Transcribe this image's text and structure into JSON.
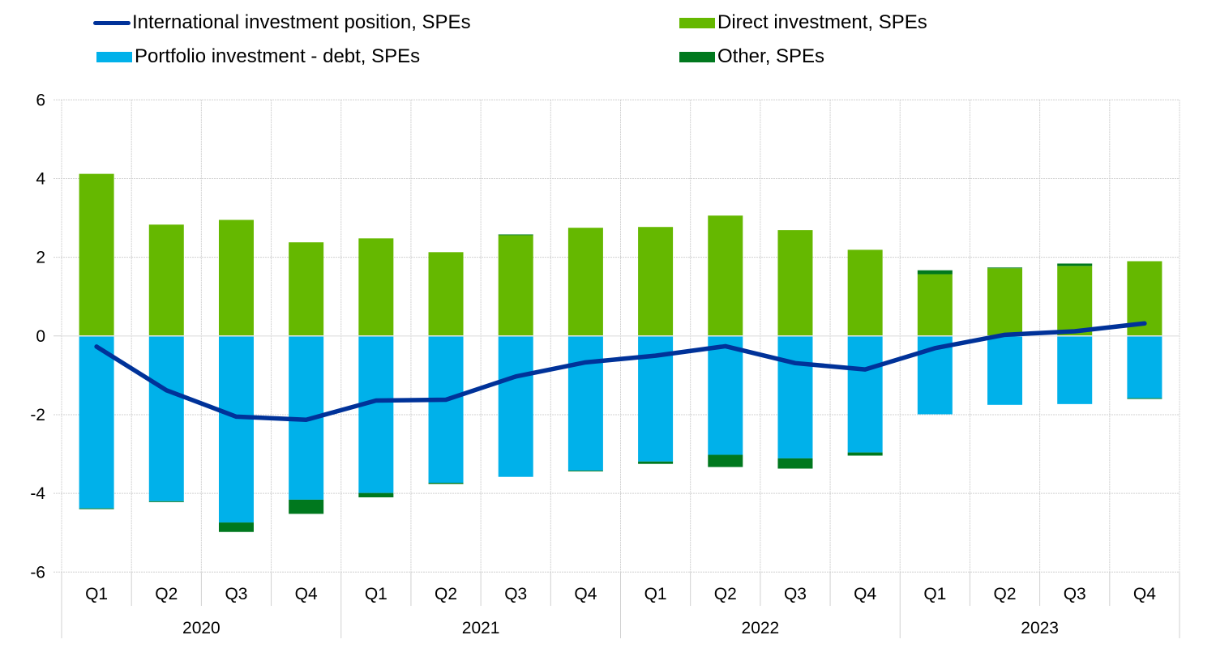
{
  "chart_data": {
    "type": "bar",
    "stacked": true,
    "title": "",
    "xlabel": "",
    "ylabel": "",
    "ylim": [
      -6,
      6
    ],
    "yticks": [
      6,
      4,
      2,
      0,
      -2,
      -4,
      -6
    ],
    "ytick_labels": [
      "6",
      "4",
      "2",
      "0",
      "-2",
      "-4",
      "-6"
    ],
    "grid": true,
    "legend_position": "top",
    "categories": [
      "Q1",
      "Q2",
      "Q3",
      "Q4",
      "Q1",
      "Q2",
      "Q3",
      "Q4",
      "Q1",
      "Q2",
      "Q3",
      "Q4",
      "Q1",
      "Q2",
      "Q3",
      "Q4"
    ],
    "years": [
      {
        "label": "2020",
        "quarters": 4
      },
      {
        "label": "2021",
        "quarters": 4
      },
      {
        "label": "2022",
        "quarters": 4
      },
      {
        "label": "2023",
        "quarters": 4
      }
    ],
    "series": [
      {
        "name": "Portfolio investment - debt, SPEs",
        "kind": "bar",
        "color": "#00b1ea",
        "values": [
          -4.38,
          -4.2,
          -4.74,
          -4.16,
          -3.99,
          -3.73,
          -3.58,
          -3.42,
          -3.19,
          -3.02,
          -3.11,
          -2.96,
          -1.99,
          -1.75,
          -1.73,
          -1.58
        ]
      },
      {
        "name": "Direct investment, SPEs",
        "kind": "bar",
        "color": "#65b800",
        "values": [
          4.12,
          2.83,
          2.95,
          2.38,
          2.48,
          2.13,
          2.56,
          2.75,
          2.77,
          3.06,
          2.69,
          2.19,
          1.57,
          1.72,
          1.78,
          1.9
        ]
      },
      {
        "name": "Other, SPEs",
        "kind": "bar",
        "color": "#00781e",
        "values": [
          -0.02,
          -0.02,
          -0.24,
          -0.36,
          -0.11,
          -0.03,
          0.02,
          -0.02,
          -0.06,
          -0.31,
          -0.26,
          -0.08,
          0.1,
          0.02,
          0.06,
          -0.02
        ]
      },
      {
        "name": "International investment position, SPEs",
        "kind": "line",
        "color": "#003299",
        "values": [
          -0.27,
          -1.38,
          -2.05,
          -2.13,
          -1.64,
          -1.62,
          -1.03,
          -0.67,
          -0.5,
          -0.26,
          -0.69,
          -0.85,
          -0.31,
          0.03,
          0.12,
          0.32
        ]
      }
    ]
  },
  "legend": {
    "items": [
      {
        "label": "International investment position, SPEs",
        "color": "#003299",
        "kind": "line"
      },
      {
        "label": "Direct investment, SPEs",
        "color": "#65b800",
        "kind": "box"
      },
      {
        "label": "Portfolio investment - debt, SPEs",
        "color": "#00b1ea",
        "kind": "box"
      },
      {
        "label": "Other, SPEs",
        "color": "#00781e",
        "kind": "box"
      }
    ]
  }
}
